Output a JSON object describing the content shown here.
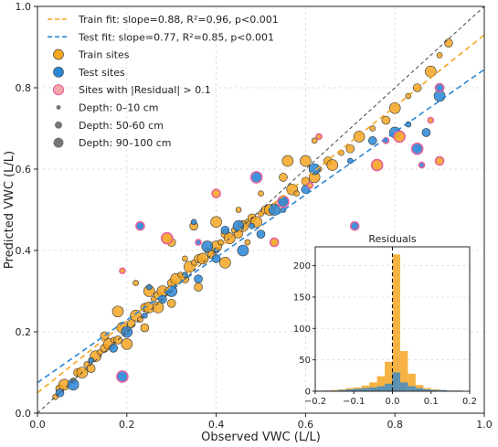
{
  "chart_data": [
    {
      "type": "scatter",
      "xlabel": "Observed VWC (L/L)",
      "ylabel": "Predicted VWC (L/L)",
      "xlim": [
        0.0,
        1.0
      ],
      "ylim": [
        0.0,
        1.0
      ],
      "x_ticks": [
        "0.0",
        "0.2",
        "0.4",
        "0.6",
        "0.8",
        "1.0"
      ],
      "y_ticks": [
        "0.0",
        "0.2",
        "0.4",
        "0.6",
        "0.8",
        "1.0"
      ],
      "grid": true,
      "legend_position": "top-left",
      "colors": {
        "train": "#f5a623",
        "test": "#2a86d6",
        "residual_edge": "#e8609a",
        "identity": "#444444",
        "depth_marker": "#777777"
      },
      "lines": [
        {
          "name": "1:1 line",
          "style": "dashed",
          "slope": 1.0,
          "intercept": 0.0
        },
        {
          "name": "Train fit: slope=0.88, R²=0.96, p<0.001",
          "style": "dashed",
          "color": "#f5a623",
          "slope": 0.88,
          "intercept": 0.05
        },
        {
          "name": "Test fit: slope=0.77, R²=0.85, p<0.001",
          "style": "dashed",
          "color": "#2a86d6",
          "slope": 0.77,
          "intercept": 0.075
        }
      ],
      "legend": [
        {
          "label": "Train fit: slope=0.88, R²=0.96, p<0.001",
          "kind": "line",
          "color": "#f5a623"
        },
        {
          "label": "Test fit: slope=0.77, R²=0.85, p<0.001",
          "kind": "line",
          "color": "#2a86d6"
        },
        {
          "label": "Train sites",
          "kind": "dot",
          "color": "#f5a623"
        },
        {
          "label": "Test sites",
          "kind": "dot",
          "color": "#2a86d6"
        },
        {
          "label": "Sites with |Residual| > 0.1",
          "kind": "dot",
          "color": "#e8609a"
        },
        {
          "label": "Depth: 0–10 cm",
          "kind": "depth",
          "size": "small"
        },
        {
          "label": "Depth: 50-60 cm",
          "kind": "depth",
          "size": "medium"
        },
        {
          "label": "Depth: 90–100 cm",
          "kind": "depth",
          "size": "large"
        }
      ],
      "series": [
        {
          "name": "Train sites",
          "points": [
            [
              0.04,
              0.04
            ],
            [
              0.05,
              0.06
            ],
            [
              0.06,
              0.07
            ],
            [
              0.08,
              0.08
            ],
            [
              0.09,
              0.1
            ],
            [
              0.1,
              0.1
            ],
            [
              0.11,
              0.12
            ],
            [
              0.12,
              0.11
            ],
            [
              0.13,
              0.14
            ],
            [
              0.14,
              0.15
            ],
            [
              0.15,
              0.16
            ],
            [
              0.16,
              0.17
            ],
            [
              0.17,
              0.18
            ],
            [
              0.18,
              0.18
            ],
            [
              0.19,
              0.21
            ],
            [
              0.2,
              0.2
            ],
            [
              0.21,
              0.22
            ],
            [
              0.22,
              0.24
            ],
            [
              0.23,
              0.23
            ],
            [
              0.24,
              0.26
            ],
            [
              0.25,
              0.26
            ],
            [
              0.26,
              0.28
            ],
            [
              0.27,
              0.29
            ],
            [
              0.28,
              0.3
            ],
            [
              0.29,
              0.3
            ],
            [
              0.3,
              0.32
            ],
            [
              0.31,
              0.33
            ],
            [
              0.32,
              0.34
            ],
            [
              0.33,
              0.33
            ],
            [
              0.34,
              0.36
            ],
            [
              0.35,
              0.37
            ],
            [
              0.36,
              0.38
            ],
            [
              0.37,
              0.38
            ],
            [
              0.38,
              0.4
            ],
            [
              0.39,
              0.39
            ],
            [
              0.4,
              0.41
            ],
            [
              0.41,
              0.42
            ],
            [
              0.42,
              0.44
            ],
            [
              0.43,
              0.43
            ],
            [
              0.44,
              0.45
            ],
            [
              0.45,
              0.44
            ],
            [
              0.46,
              0.46
            ],
            [
              0.47,
              0.47
            ],
            [
              0.48,
              0.48
            ],
            [
              0.49,
              0.47
            ],
            [
              0.5,
              0.49
            ],
            [
              0.51,
              0.5
            ],
            [
              0.52,
              0.5
            ],
            [
              0.53,
              0.51
            ],
            [
              0.55,
              0.52
            ],
            [
              0.57,
              0.55
            ],
            [
              0.58,
              0.54
            ],
            [
              0.6,
              0.57
            ],
            [
              0.62,
              0.58
            ],
            [
              0.63,
              0.6
            ],
            [
              0.65,
              0.62
            ],
            [
              0.66,
              0.61
            ],
            [
              0.68,
              0.64
            ],
            [
              0.7,
              0.65
            ],
            [
              0.72,
              0.68
            ],
            [
              0.75,
              0.7
            ],
            [
              0.78,
              0.72
            ],
            [
              0.8,
              0.75
            ],
            [
              0.83,
              0.78
            ],
            [
              0.85,
              0.8
            ],
            [
              0.88,
              0.84
            ],
            [
              0.9,
              0.88
            ],
            [
              0.92,
              0.91
            ],
            [
              0.18,
              0.25
            ],
            [
              0.22,
              0.32
            ],
            [
              0.35,
              0.46
            ],
            [
              0.4,
              0.47
            ],
            [
              0.45,
              0.5
            ],
            [
              0.3,
              0.42
            ],
            [
              0.25,
              0.3
            ],
            [
              0.5,
              0.54
            ],
            [
              0.55,
              0.58
            ],
            [
              0.6,
              0.62
            ],
            [
              0.12,
              0.13
            ],
            [
              0.15,
              0.19
            ],
            [
              0.27,
              0.26
            ],
            [
              0.33,
              0.38
            ],
            [
              0.36,
              0.31
            ],
            [
              0.42,
              0.37
            ],
            [
              0.47,
              0.42
            ],
            [
              0.3,
              0.27
            ],
            [
              0.56,
              0.62
            ],
            [
              0.62,
              0.67
            ],
            [
              0.24,
              0.21
            ],
            [
              0.2,
              0.17
            ]
          ]
        },
        {
          "name": "Test sites",
          "points": [
            [
              0.05,
              0.05
            ],
            [
              0.08,
              0.07
            ],
            [
              0.12,
              0.13
            ],
            [
              0.17,
              0.16
            ],
            [
              0.2,
              0.2
            ],
            [
              0.24,
              0.24
            ],
            [
              0.28,
              0.28
            ],
            [
              0.3,
              0.3
            ],
            [
              0.33,
              0.34
            ],
            [
              0.36,
              0.33
            ],
            [
              0.38,
              0.41
            ],
            [
              0.4,
              0.4
            ],
            [
              0.42,
              0.45
            ],
            [
              0.45,
              0.46
            ],
            [
              0.48,
              0.46
            ],
            [
              0.5,
              0.44
            ],
            [
              0.53,
              0.5
            ],
            [
              0.55,
              0.5
            ],
            [
              0.6,
              0.55
            ],
            [
              0.62,
              0.6
            ],
            [
              0.7,
              0.62
            ],
            [
              0.75,
              0.67
            ],
            [
              0.8,
              0.69
            ],
            [
              0.83,
              0.71
            ],
            [
              0.87,
              0.69
            ],
            [
              0.9,
              0.78
            ],
            [
              0.35,
              0.47
            ],
            [
              0.4,
              0.38
            ],
            [
              0.46,
              0.4
            ],
            [
              0.25,
              0.31
            ]
          ]
        },
        {
          "name": "Sites with |Residual| > 0.1",
          "points": [
            [
              0.19,
              0.09
            ],
            [
              0.19,
              0.35
            ],
            [
              0.23,
              0.46
            ],
            [
              0.29,
              0.43
            ],
            [
              0.36,
              0.42
            ],
            [
              0.53,
              0.42
            ],
            [
              0.55,
              0.52
            ],
            [
              0.61,
              0.56
            ],
            [
              0.71,
              0.46
            ],
            [
              0.76,
              0.61
            ],
            [
              0.86,
              0.61
            ],
            [
              0.9,
              0.62
            ],
            [
              0.85,
              0.65
            ],
            [
              0.88,
              0.72
            ],
            [
              0.9,
              0.8
            ],
            [
              0.81,
              0.68
            ],
            [
              0.78,
              0.67
            ],
            [
              0.4,
              0.54
            ],
            [
              0.49,
              0.58
            ],
            [
              0.63,
              0.68
            ]
          ]
        }
      ]
    },
    {
      "type": "bar",
      "title": "Residuals",
      "xlim": [
        -0.2,
        0.2
      ],
      "ylim": [
        0,
        230
      ],
      "x_ticks": [
        "−0.2",
        "−0.1",
        "0.0",
        "0.1",
        "0.2"
      ],
      "y_ticks": [
        "0",
        "50",
        "100",
        "150",
        "200"
      ],
      "bin_edges": [
        -0.2,
        -0.18,
        -0.16,
        -0.14,
        -0.12,
        -0.1,
        -0.08,
        -0.06,
        -0.04,
        -0.02,
        0.0,
        0.02,
        0.04,
        0.06,
        0.08,
        0.1,
        0.12,
        0.14,
        0.16,
        0.18,
        0.2
      ],
      "series": [
        {
          "name": "Train sites",
          "color": "#f5a623",
          "values": [
            1,
            1,
            2,
            3,
            5,
            6,
            9,
            14,
            24,
            47,
            218,
            64,
            28,
            10,
            5,
            3,
            2,
            1,
            1,
            0
          ]
        },
        {
          "name": "Test sites",
          "color": "#2a86d6",
          "values": [
            0,
            1,
            1,
            2,
            3,
            4,
            5,
            6,
            8,
            12,
            30,
            14,
            8,
            5,
            3,
            2,
            2,
            1,
            1,
            0
          ]
        }
      ],
      "reference_line": 0.0
    }
  ]
}
